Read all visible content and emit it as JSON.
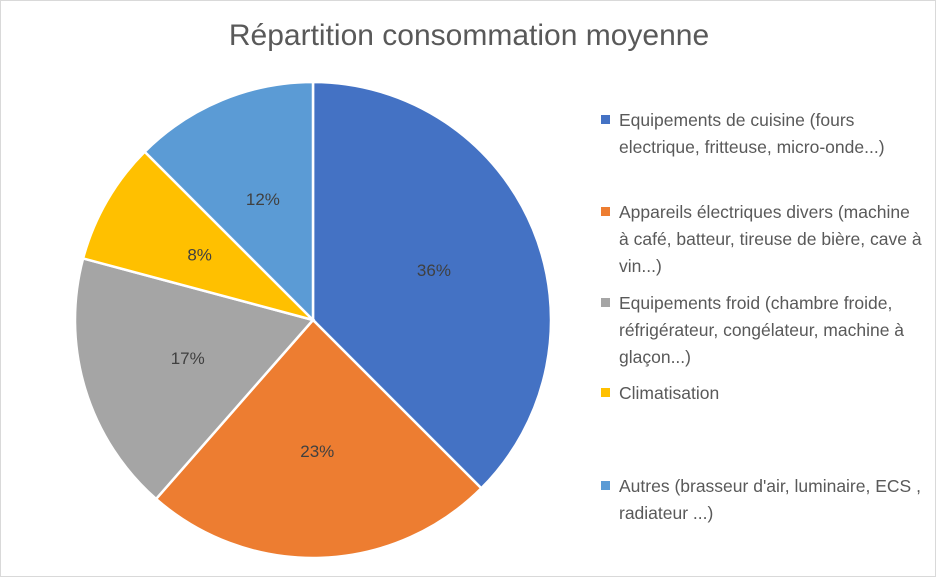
{
  "chart_data": {
    "type": "pie",
    "title": "Répartition consommation moyenne",
    "slices": [
      {
        "label": "Equipements de cuisine (fours electrique, fritteuse, micro-onde...)",
        "value": 36,
        "display": "36%",
        "color": "#4472C4"
      },
      {
        "label": "Appareils électriques divers (machine à café, batteur, tireuse de bière, cave à vin...)",
        "value": 23,
        "display": "23%",
        "color": "#ED7D31"
      },
      {
        "label": "Equipements froid (chambre froide, réfrigérateur, congélateur, machine à glaçon...)",
        "value": 17,
        "display": "17%",
        "color": "#A5A5A5"
      },
      {
        "label": "Climatisation",
        "value": 8,
        "display": "8%",
        "color": "#FFC000"
      },
      {
        "label": "Autres (brasseur d'air, luminaire, ECS , radiateur ...)",
        "value": 12,
        "display": "12%",
        "color": "#5B9BD5"
      }
    ],
    "legend_position": "right"
  }
}
